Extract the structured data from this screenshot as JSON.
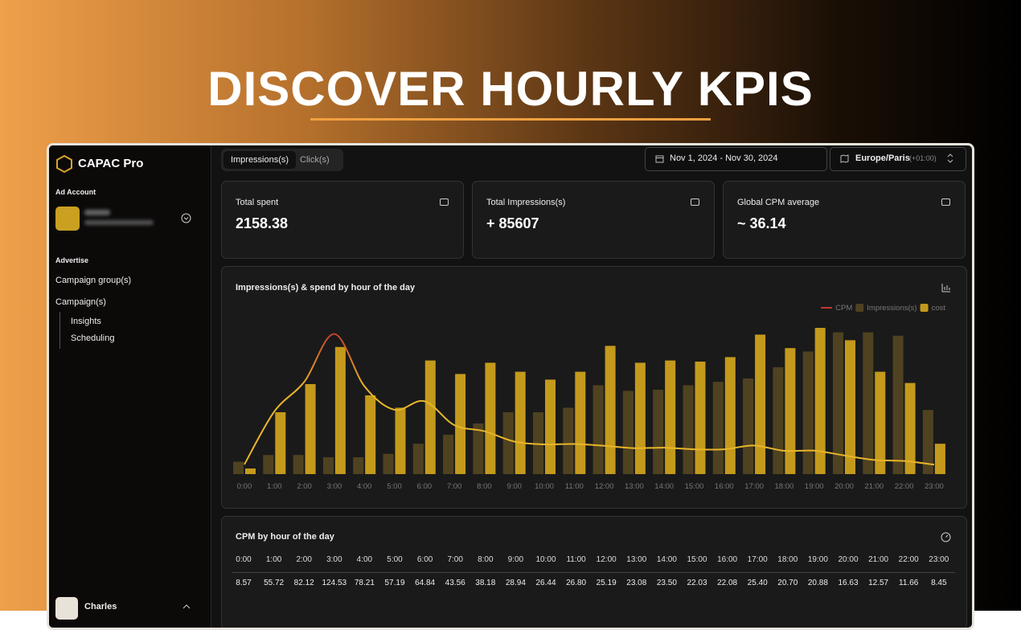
{
  "header": {
    "title": "DISCOVER HOURLY KPIS"
  },
  "sidebar": {
    "brand": "CAPAC Pro",
    "account_label": "Ad Account",
    "section": "Advertise",
    "items": [
      "Campaign group(s)",
      "Campaign(s)"
    ],
    "subitems": [
      "Insights",
      "Scheduling"
    ],
    "user": "Charles"
  },
  "toolbar": {
    "tabs": [
      "Impressions(s)",
      "Click(s)"
    ],
    "date_range": "Nov 1, 2024 - Nov 30, 2024",
    "timezone": "Europe/Paris",
    "offset": "(+01:00)"
  },
  "kpis": [
    {
      "label": "Total spent",
      "value": "2158.38"
    },
    {
      "label": "Total Impressions(s)",
      "value": "+ 85607"
    },
    {
      "label": "Global CPM average",
      "value": "~ 36.14"
    }
  ],
  "chart_data": {
    "type": "bar",
    "title": "Impressions(s) & spend by hour of the day",
    "categories": [
      "0:00",
      "1:00",
      "2:00",
      "3:00",
      "4:00",
      "5:00",
      "6:00",
      "7:00",
      "8:00",
      "9:00",
      "10:00",
      "11:00",
      "12:00",
      "13:00",
      "14:00",
      "15:00",
      "16:00",
      "17:00",
      "18:00",
      "19:00",
      "20:00",
      "21:00",
      "22:00",
      "23:00"
    ],
    "series": [
      {
        "name": "CPM",
        "type": "line",
        "color": "#e8b52a",
        "peak_color": "#c0392b",
        "values": [
          8.57,
          55.72,
          82.12,
          124.53,
          78.21,
          57.19,
          64.84,
          43.56,
          38.18,
          28.94,
          26.44,
          26.8,
          25.19,
          23.08,
          23.5,
          22.03,
          22.08,
          25.4,
          20.7,
          20.88,
          16.63,
          12.57,
          11.66,
          8.45
        ],
        "value_labels": [
          "8.57",
          "55.72",
          "82.12",
          "124.53",
          "78.21",
          "57.19",
          "64.84",
          "43.56",
          "38.18",
          "28.94",
          "26.44",
          "26.80",
          "25.19",
          "23.08",
          "23.50",
          "22.03",
          "22.08",
          "25.40",
          "20.70",
          "20.88",
          "16.63",
          "12.57",
          "11.66",
          "8.45"
        ]
      },
      {
        "name": "Impressions(s)",
        "type": "bar",
        "color": "#4f4220",
        "values": [
          11,
          17,
          17,
          15,
          15,
          18,
          27,
          35,
          45,
          55,
          55,
          59,
          79,
          74,
          75,
          79,
          82,
          85,
          95,
          109,
          126,
          126,
          123,
          57
        ]
      },
      {
        "name": "cost",
        "type": "bar",
        "color": "#c49a1c",
        "values": [
          5,
          55,
          80,
          113,
          70,
          59,
          101,
          89,
          99,
          91,
          84,
          91,
          114,
          99,
          101,
          100,
          104,
          124,
          112,
          130,
          119,
          91,
          81,
          27
        ]
      }
    ],
    "legend": "top-right"
  },
  "cpm_table": {
    "title": "CPM by hour of the day"
  }
}
